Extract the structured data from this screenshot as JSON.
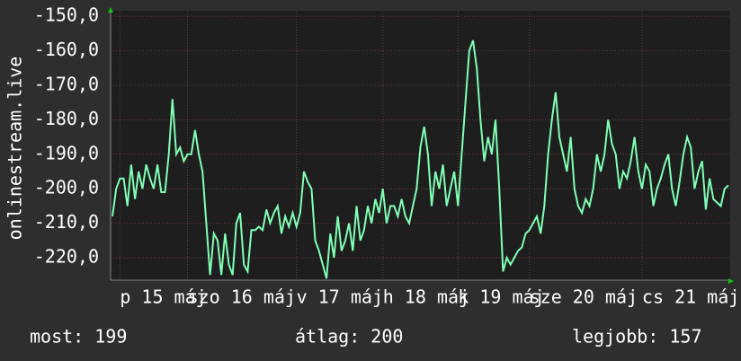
{
  "chart_data": {
    "type": "line",
    "y_label": "onlinestream.live",
    "series": [
      {
        "color": "#7fffb4",
        "values": [
          -208,
          -200,
          -197,
          -197,
          -205,
          -193,
          -203,
          -195,
          -200,
          -193,
          -197,
          -200,
          -193,
          -201,
          -201,
          -190,
          -174,
          -190,
          -188,
          -192,
          -190,
          -190,
          -183,
          -190,
          -195,
          -210,
          -225,
          -213,
          -215,
          -225,
          -213,
          -222,
          -225,
          -210,
          -207,
          -222,
          -224,
          -212,
          -212,
          -211,
          -212,
          -206,
          -210,
          -207,
          -205,
          -213,
          -208,
          -211,
          -207,
          -211,
          -207,
          -195,
          -198,
          -200,
          -215,
          -218,
          -222,
          -226,
          -213,
          -220,
          -208,
          -218,
          -215,
          -210,
          -218,
          -205,
          -215,
          -212,
          -205,
          -210,
          -203,
          -207,
          -200,
          -210,
          -205,
          -205,
          -208,
          -203,
          -208,
          -210,
          -205,
          -200,
          -188,
          -182,
          -190,
          -205,
          -195,
          -200,
          -193,
          -205,
          -200,
          -195,
          -205,
          -190,
          -175,
          -160,
          -157,
          -165,
          -180,
          -192,
          -185,
          -190,
          -180,
          -200,
          -224,
          -220,
          -222,
          -220,
          -218,
          -217,
          -213,
          -212,
          -210,
          -208,
          -213,
          -205,
          -190,
          -180,
          -172,
          -185,
          -190,
          -195,
          -185,
          -200,
          -205,
          -207,
          -203,
          -205,
          -200,
          -190,
          -195,
          -190,
          -180,
          -187,
          -190,
          -200,
          -195,
          -197,
          -192,
          -185,
          -195,
          -200,
          -193,
          -195,
          -205,
          -200,
          -197,
          -193,
          -190,
          -200,
          -205,
          -198,
          -190,
          -185,
          -188,
          -200,
          -195,
          -192,
          -206,
          -197,
          -203,
          -204,
          -205,
          -200,
          -199
        ]
      }
    ],
    "xlim": [
      0,
      164
    ],
    "xticks": [
      {
        "value": 2,
        "label": "p 15 máj"
      },
      {
        "value": 20,
        "label": "szo 16 máj"
      },
      {
        "value": 49,
        "label": "v 17 máj"
      },
      {
        "value": 72,
        "label": "h 18 máj"
      },
      {
        "value": 92,
        "label": "k 19 máj"
      },
      {
        "value": 111,
        "label": "sze 20 máj"
      },
      {
        "value": 141,
        "label": "cs 21 máj"
      }
    ],
    "ylim": [
      -226.5,
      -148.4
    ],
    "yticks": [
      {
        "value": -150,
        "label": "-150,0"
      },
      {
        "value": -160,
        "label": "-160,0"
      },
      {
        "value": -170,
        "label": "-170,0"
      },
      {
        "value": -180,
        "label": "-180,0"
      },
      {
        "value": -190,
        "label": "-190,0"
      },
      {
        "value": -200,
        "label": "-200,0"
      },
      {
        "value": -210,
        "label": "-210,0"
      },
      {
        "value": -220,
        "label": "-220,0"
      }
    ],
    "grid": true,
    "footer": [
      "most: 199",
      "átlag: 200",
      "legjobb: 157"
    ]
  }
}
